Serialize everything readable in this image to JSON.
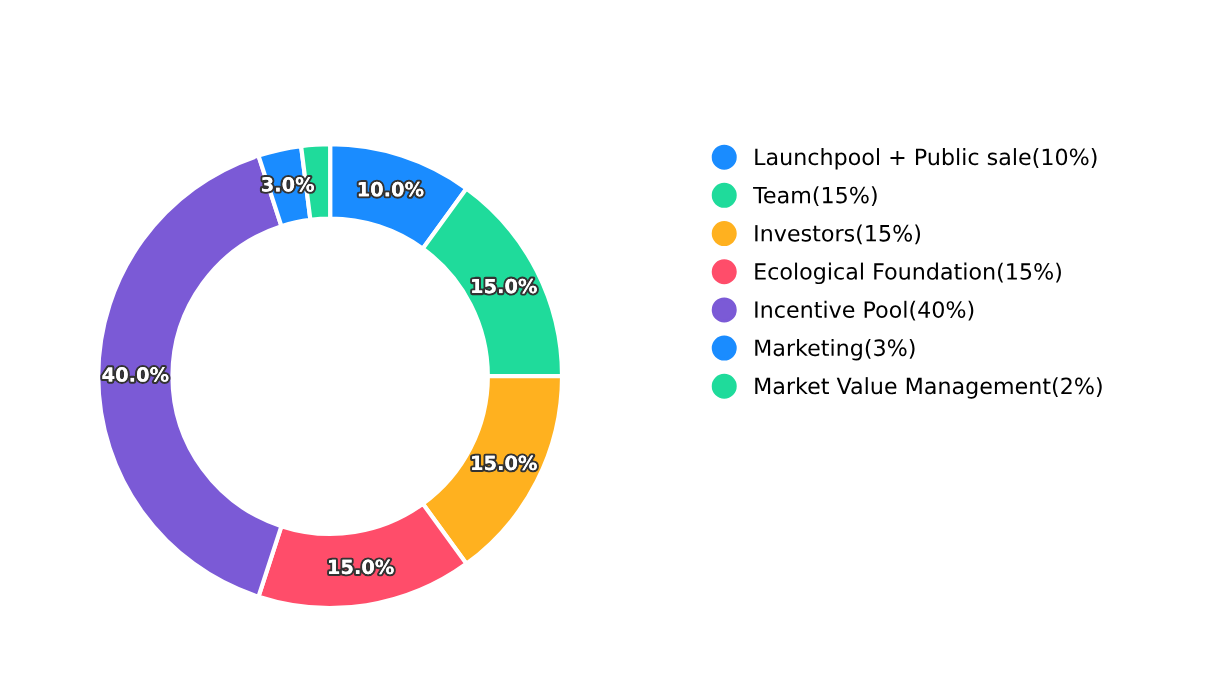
{
  "chart_data": {
    "type": "donut",
    "categories": [
      "Launchpool + Public sale(10%)",
      "Team(15%)",
      "Investors(15%)",
      "Ecological Foundation(15%)",
      "Incentive Pool(40%)",
      "Marketing(3%)",
      "Market Value Management(2%)"
    ],
    "values": [
      10,
      15,
      15,
      15,
      40,
      3,
      2
    ],
    "colors": [
      "#1a8cff",
      "#1fdb9b",
      "#ffb11f",
      "#ff4d6a",
      "#7b5ad6",
      "#1a8cff",
      "#1fdb9b"
    ],
    "value_labels": [
      "10.0%",
      "15.0%",
      "15.0%",
      "15.0%",
      "40.0%",
      "3.0%",
      null
    ],
    "legend": "right"
  }
}
